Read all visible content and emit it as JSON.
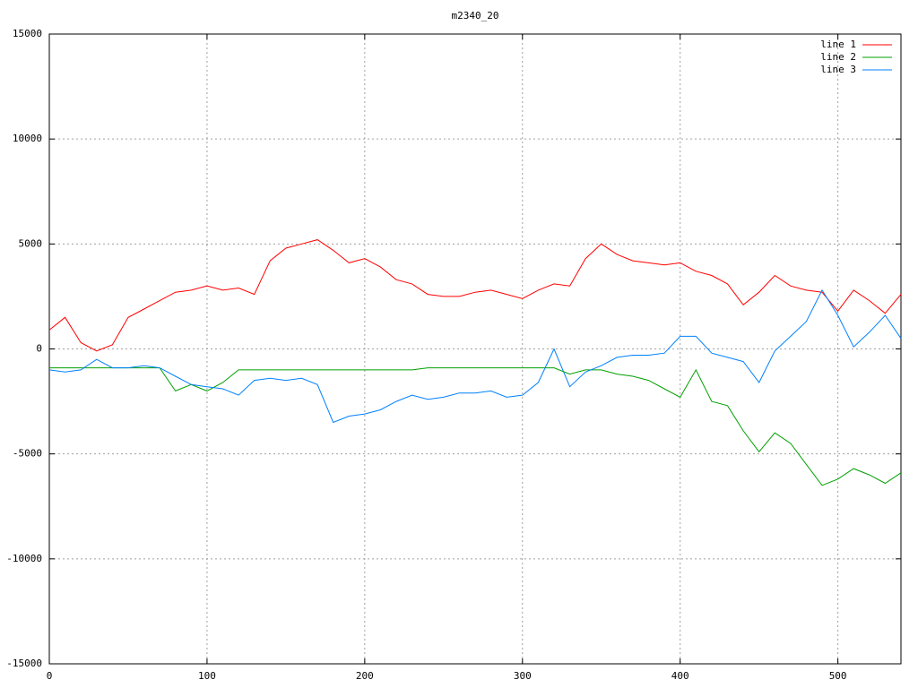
{
  "chart_data": {
    "type": "line",
    "title": "m2340_20",
    "x": [
      0,
      10,
      20,
      30,
      40,
      50,
      60,
      70,
      80,
      90,
      100,
      110,
      120,
      130,
      140,
      150,
      160,
      170,
      180,
      190,
      200,
      210,
      220,
      230,
      240,
      250,
      260,
      270,
      280,
      290,
      300,
      310,
      320,
      330,
      340,
      350,
      360,
      370,
      380,
      390,
      400,
      410,
      420,
      430,
      440,
      450,
      460,
      470,
      480,
      490,
      500,
      510,
      520,
      530,
      540
    ],
    "series": [
      {
        "name": "line 1",
        "color": "#ff0000",
        "values": [
          900,
          1500,
          300,
          -100,
          200,
          1500,
          1900,
          2300,
          2700,
          2800,
          3000,
          2800,
          2900,
          2600,
          4200,
          4800,
          5000,
          5200,
          4700,
          4100,
          4300,
          3900,
          3300,
          3100,
          2600,
          2500,
          2500,
          2700,
          2800,
          2600,
          2400,
          2800,
          3100,
          3000,
          4300,
          5000,
          4500,
          4200,
          4100,
          4000,
          4100,
          3700,
          3500,
          3100,
          2100,
          2700,
          3500,
          3000,
          2800,
          2700,
          1800,
          2800,
          2300,
          1700,
          2600
        ]
      },
      {
        "name": "line 2",
        "color": "#00a000",
        "values": [
          -900,
          -900,
          -900,
          -900,
          -900,
          -900,
          -900,
          -900,
          -2000,
          -1700,
          -2000,
          -1600,
          -1000,
          -1000,
          -1000,
          -1000,
          -1000,
          -1000,
          -1000,
          -1000,
          -1000,
          -1000,
          -1000,
          -1000,
          -900,
          -900,
          -900,
          -900,
          -900,
          -900,
          -900,
          -900,
          -900,
          -1200,
          -1000,
          -1000,
          -1200,
          -1300,
          -1500,
          -1900,
          -2300,
          -1000,
          -2500,
          -2700,
          -3900,
          -4900,
          -4000,
          -4500,
          -5500,
          -6500,
          -6200,
          -5700,
          -6000,
          -6400,
          -5900
        ]
      },
      {
        "name": "line 3",
        "color": "#0080ff",
        "values": [
          -1000,
          -1100,
          -1000,
          -500,
          -900,
          -900,
          -800,
          -900,
          -1300,
          -1700,
          -1800,
          -1900,
          -2200,
          -1500,
          -1400,
          -1500,
          -1400,
          -1700,
          -3500,
          -3200,
          -3100,
          -2900,
          -2500,
          -2200,
          -2400,
          -2300,
          -2100,
          -2100,
          -2000,
          -2300,
          -2200,
          -1600,
          0,
          -1800,
          -1100,
          -800,
          -400,
          -300,
          -300,
          -200,
          600,
          600,
          -200,
          -400,
          -600,
          -1600,
          -100,
          600,
          1300,
          2800,
          1600,
          100,
          800,
          1600,
          500
        ]
      }
    ],
    "xlim": [
      0,
      540
    ],
    "xticks": [
      0,
      100,
      200,
      300,
      400,
      500
    ],
    "ylim": [
      -15000,
      15000
    ],
    "yticks": [
      -15000,
      -10000,
      -5000,
      0,
      5000,
      10000,
      15000
    ],
    "grid": true,
    "legend": "top-right"
  }
}
